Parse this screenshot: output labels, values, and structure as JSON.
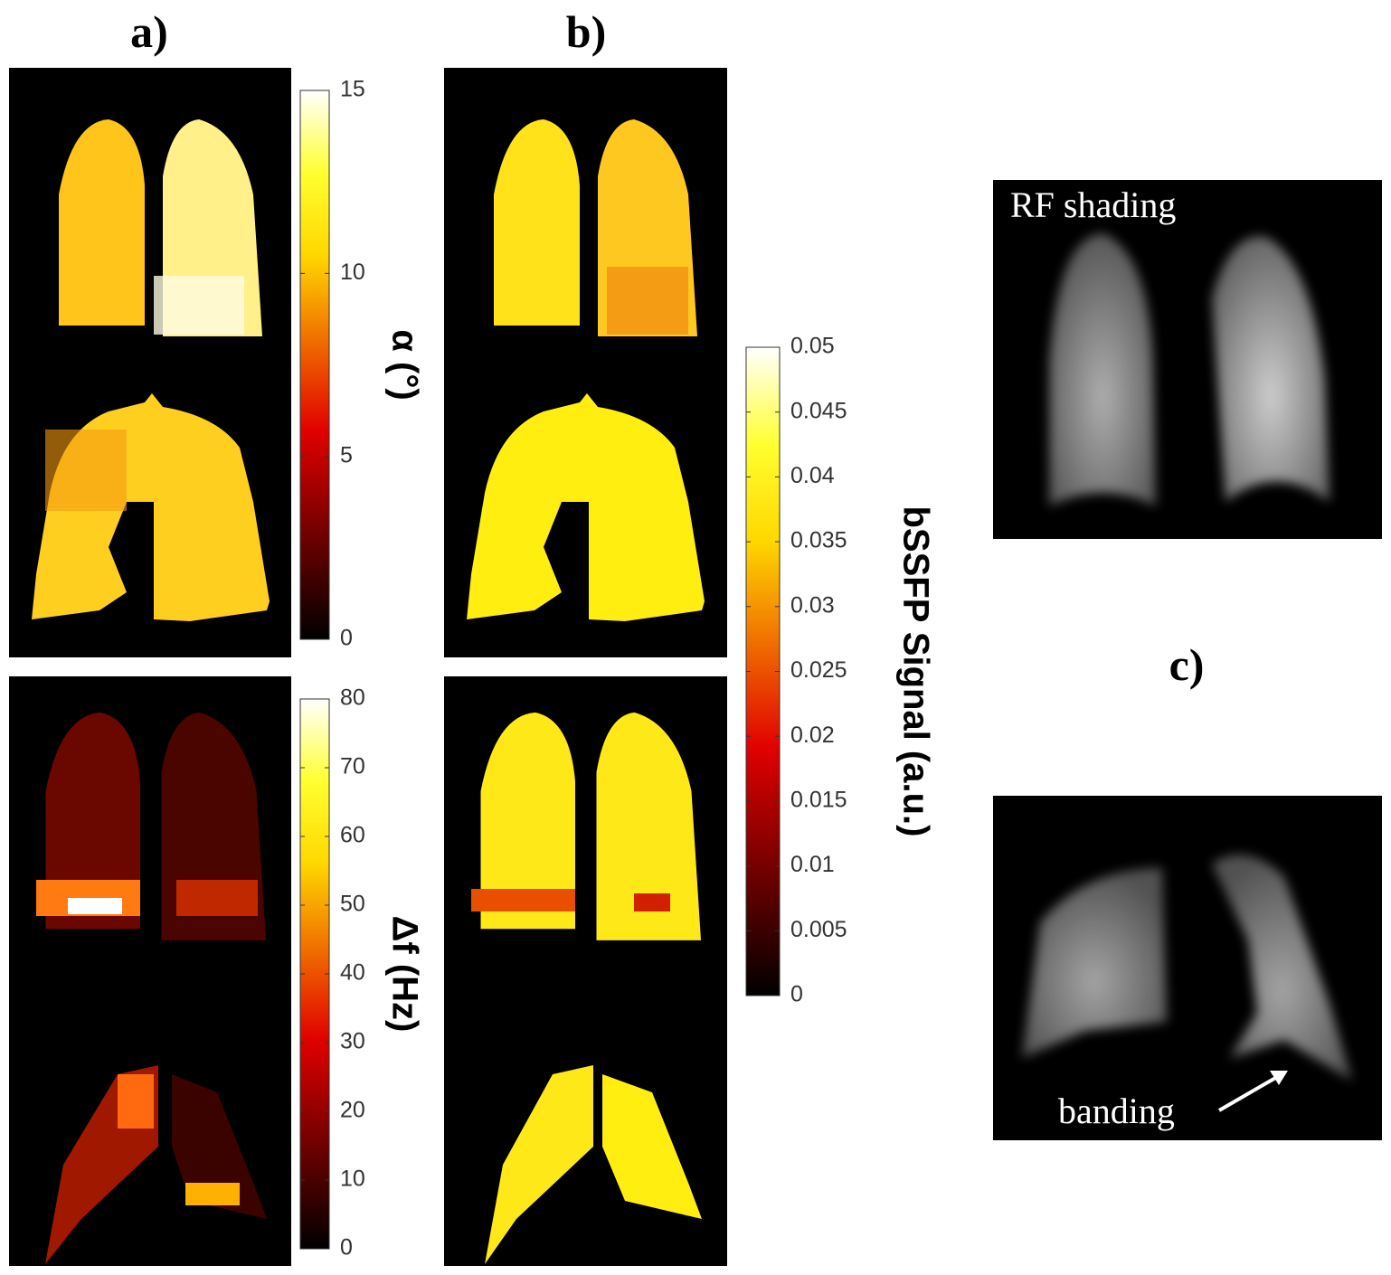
{
  "figure": {
    "panels": {
      "a": {
        "label": "a)",
        "colorbars": [
          {
            "title": "α (°)",
            "lim": [
              0,
              15
            ],
            "ticks": [
              0,
              5,
              10,
              15
            ]
          },
          {
            "title": "Δf (Hz)",
            "lim": [
              0,
              80
            ],
            "ticks": [
              0,
              10,
              20,
              30,
              40,
              50,
              60,
              70,
              80
            ]
          }
        ]
      },
      "b": {
        "label": "b)",
        "colorbars": [
          {
            "title": "bSSFP Signal (a.u.)",
            "lim": [
              0,
              0.05
            ],
            "ticks": [
              0,
              0.005,
              0.01,
              0.015,
              0.02,
              0.025,
              0.03,
              0.035,
              0.04,
              0.045,
              0.05
            ]
          }
        ]
      },
      "c": {
        "label": "c)",
        "annotations": [
          "RF shading",
          "banding"
        ]
      }
    }
  }
}
